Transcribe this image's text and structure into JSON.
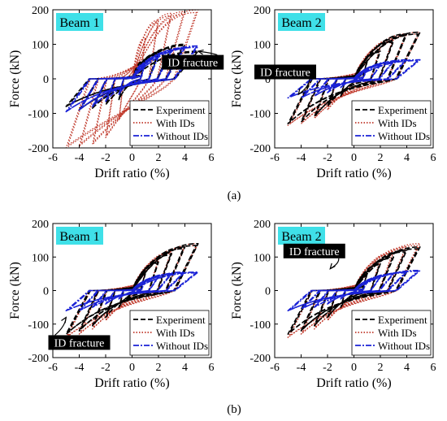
{
  "figure": {
    "row_captions": [
      {
        "text": "(a)",
        "bold": "a"
      },
      {
        "text": "(b)",
        "bold": "b"
      }
    ]
  },
  "legend_entries": [
    {
      "name": "Experiment",
      "color": "#000000",
      "dash": "6,3"
    },
    {
      "name": "With IDs",
      "color": "#c0392b",
      "dash": "1.5,2"
    },
    {
      "name": "Without IDs",
      "color": "#1a22d6",
      "dash": "7,2,2,2"
    }
  ],
  "colors": {
    "experiment": "#000000",
    "with_ids": "#c0392b",
    "without_ids": "#1a22d6",
    "beam_label_bg": "#3fe0e8",
    "annotation_bg": "#000000",
    "annotation_text": "#ffffff"
  },
  "chart_data": [
    {
      "type": "line",
      "panel": "a-left",
      "beam_label": "Beam 1",
      "xlabel": "Drift ratio (%)",
      "ylabel": "Force (kN)",
      "xlim": [
        -6,
        6
      ],
      "ylim": [
        -200,
        200
      ],
      "xticks": [
        -6,
        -4,
        -2,
        0,
        2,
        4,
        6
      ],
      "yticks": [
        -200,
        -100,
        0,
        100,
        200
      ],
      "grid": false,
      "legend_position": "bottom-right",
      "annotation": {
        "text": "ID fracture",
        "x": 4.6,
        "y": 48,
        "arrow_to": [
          5.0,
          80
        ]
      },
      "series": [
        {
          "name": "Experiment",
          "amplitudes": [
            1,
            2,
            3,
            4,
            5
          ],
          "peak_pos": [
            55,
            75,
            90,
            100,
            80
          ],
          "peak_neg": [
            -60,
            -75,
            -85,
            -90,
            -80
          ],
          "pinch": 0.35
        },
        {
          "name": "With IDs",
          "amplitudes": [
            1,
            2,
            3,
            4,
            5
          ],
          "peak_pos": [
            120,
            170,
            190,
            195,
            200
          ],
          "peak_neg": [
            -120,
            -170,
            -190,
            -195,
            -200
          ],
          "pinch": 0.85
        },
        {
          "name": "Without IDs",
          "amplitudes": [
            1,
            2,
            3,
            4,
            5
          ],
          "peak_pos": [
            45,
            65,
            80,
            90,
            95
          ],
          "peak_neg": [
            -45,
            -65,
            -80,
            -90,
            -95
          ],
          "pinch": 0.3
        }
      ]
    },
    {
      "type": "line",
      "panel": "a-right",
      "beam_label": "Beam 2",
      "xlabel": "Drift ratio (%)",
      "ylabel": "Force (kN)",
      "xlim": [
        -6,
        6
      ],
      "ylim": [
        -200,
        200
      ],
      "xticks": [
        -6,
        -4,
        -2,
        0,
        2,
        4,
        6
      ],
      "yticks": [
        -200,
        -100,
        0,
        100,
        200
      ],
      "grid": false,
      "legend_position": "bottom-right",
      "annotation": {
        "text": "ID fracture",
        "x": -5.2,
        "y": 20,
        "arrow_to": [
          -4.2,
          -45
        ]
      },
      "series": [
        {
          "name": "Experiment",
          "amplitudes": [
            1,
            2,
            3,
            4,
            5
          ],
          "peak_pos": [
            50,
            80,
            110,
            130,
            135
          ],
          "peak_neg": [
            -50,
            -80,
            -110,
            -125,
            -130
          ],
          "pinch": 0.35
        },
        {
          "name": "With IDs",
          "amplitudes": [
            1,
            2,
            3,
            4,
            5
          ],
          "peak_pos": [
            55,
            90,
            115,
            130,
            135
          ],
          "peak_neg": [
            -55,
            -90,
            -115,
            -130,
            -135
          ],
          "pinch": 0.55
        },
        {
          "name": "Without IDs",
          "amplitudes": [
            1,
            2,
            3,
            4,
            5
          ],
          "peak_pos": [
            25,
            40,
            50,
            55,
            55
          ],
          "peak_neg": [
            -25,
            -40,
            -50,
            -55,
            -55
          ],
          "pinch": 0.25
        }
      ]
    },
    {
      "type": "line",
      "panel": "b-left",
      "beam_label": "Beam 1",
      "xlabel": "Drift ratio (%)",
      "ylabel": "Force (kN)",
      "xlim": [
        -6,
        6
      ],
      "ylim": [
        -200,
        200
      ],
      "xticks": [
        -6,
        -4,
        -2,
        0,
        2,
        4,
        6
      ],
      "yticks": [
        -200,
        -100,
        0,
        100,
        200
      ],
      "grid": false,
      "legend_position": "bottom-right",
      "annotation": {
        "text": "ID fracture",
        "x": -4.0,
        "y": -155,
        "arrow_to": [
          -5.0,
          -80
        ]
      },
      "series": [
        {
          "name": "Experiment",
          "amplitudes": [
            1,
            2,
            3,
            4,
            5
          ],
          "peak_pos": [
            50,
            85,
            110,
            130,
            140
          ],
          "peak_neg": [
            -50,
            -80,
            -105,
            -120,
            -130
          ],
          "pinch": 0.35
        },
        {
          "name": "With IDs",
          "amplitudes": [
            1,
            2,
            3,
            4,
            5
          ],
          "peak_pos": [
            55,
            90,
            115,
            130,
            140
          ],
          "peak_neg": [
            -55,
            -90,
            -115,
            -130,
            -140
          ],
          "pinch": 0.55
        },
        {
          "name": "Without IDs",
          "amplitudes": [
            1,
            2,
            3,
            4,
            5
          ],
          "peak_pos": [
            25,
            40,
            50,
            55,
            55
          ],
          "peak_neg": [
            -25,
            -40,
            -50,
            -60,
            -60
          ],
          "pinch": 0.25
        }
      ]
    },
    {
      "type": "line",
      "panel": "b-right",
      "beam_label": "Beam 2",
      "xlabel": "Drift ratio (%)",
      "ylabel": "Force (kN)",
      "xlim": [
        -6,
        6
      ],
      "ylim": [
        -200,
        200
      ],
      "xticks": [
        -6,
        -4,
        -2,
        0,
        2,
        4,
        6
      ],
      "yticks": [
        -200,
        -100,
        0,
        100,
        200
      ],
      "grid": false,
      "legend_position": "bottom-right",
      "annotation": {
        "text": "ID fracture",
        "x": -3.0,
        "y": 118,
        "arrow_to": [
          -1.8,
          65
        ]
      },
      "series": [
        {
          "name": "Experiment",
          "amplitudes": [
            1,
            2,
            3,
            4,
            5
          ],
          "peak_pos": [
            50,
            80,
            100,
            120,
            130
          ],
          "peak_neg": [
            -50,
            -80,
            -105,
            -120,
            -130
          ],
          "pinch": 0.35
        },
        {
          "name": "With IDs",
          "amplitudes": [
            1,
            2,
            3,
            4,
            5
          ],
          "peak_pos": [
            55,
            90,
            115,
            130,
            140
          ],
          "peak_neg": [
            -55,
            -90,
            -115,
            -130,
            -140
          ],
          "pinch": 0.55
        },
        {
          "name": "Without IDs",
          "amplitudes": [
            1,
            2,
            3,
            4,
            5
          ],
          "peak_pos": [
            25,
            40,
            50,
            55,
            60
          ],
          "peak_neg": [
            -25,
            -40,
            -50,
            -55,
            -60
          ],
          "pinch": 0.25
        }
      ]
    }
  ]
}
